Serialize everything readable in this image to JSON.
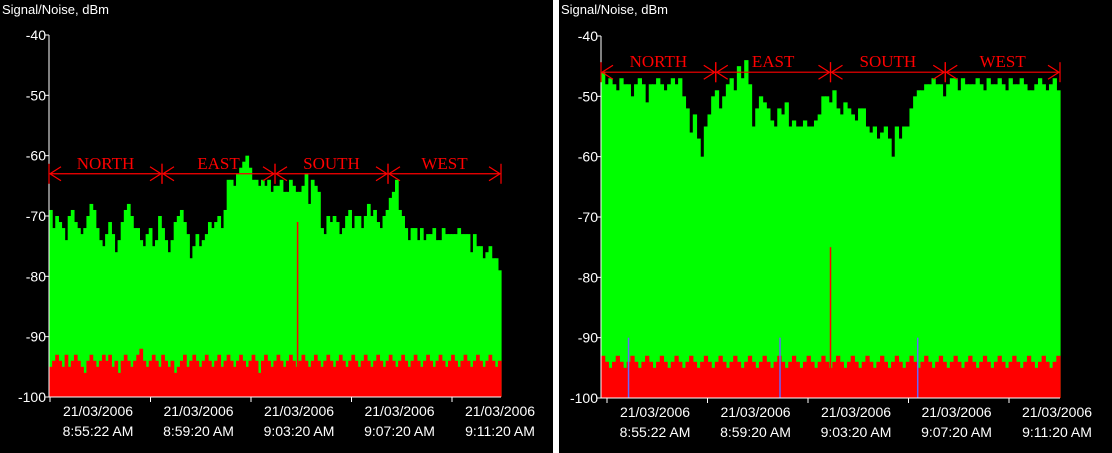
{
  "colors": {
    "background": "#000000",
    "signal": "#00ff00",
    "noise": "#ff0000",
    "text": "#ffffff",
    "axis": "#ffffff",
    "annotation": "#ff0000",
    "spike": "#ff0000",
    "marker": "#6666ff"
  },
  "chart_data": [
    {
      "type": "area",
      "ylabel": "Signal/Noise, dBm",
      "ylim": [
        -100,
        -40
      ],
      "yticks": [
        "-40",
        "-50",
        "-60",
        "-70",
        "-80",
        "-90",
        "-100"
      ],
      "xticks": [
        {
          "date": "21/03/2006",
          "time": "8:55:22 AM"
        },
        {
          "date": "21/03/2006",
          "time": "8:59:20 AM"
        },
        {
          "date": "21/03/2006",
          "time": "9:03:20 AM"
        },
        {
          "date": "21/03/2006",
          "time": "9:07:20 AM"
        },
        {
          "date": "21/03/2006",
          "time": "9:11:20 AM"
        }
      ],
      "annotation_level": -63,
      "annotations": [
        {
          "label": "NORTH",
          "from": 0.0,
          "to": 0.25
        },
        {
          "label": "EAST",
          "from": 0.25,
          "to": 0.5
        },
        {
          "label": "SOUTH",
          "from": 0.5,
          "to": 0.75
        },
        {
          "label": "WEST",
          "from": 0.75,
          "to": 1.0
        }
      ],
      "series": [
        {
          "name": "Signal",
          "values": [
            -69,
            -72,
            -70,
            -71,
            -72,
            -74,
            -70,
            -69,
            -71,
            -72,
            -73,
            -72,
            -70,
            -68,
            -69,
            -72,
            -74,
            -75,
            -73,
            -71,
            -73,
            -76,
            -74,
            -71,
            -69,
            -68,
            -70,
            -72,
            -72,
            -74,
            -75,
            -73,
            -72,
            -75,
            -74,
            -70,
            -72,
            -74,
            -76,
            -74,
            -71,
            -70,
            -69,
            -71,
            -73,
            -77,
            -75,
            -73,
            -75,
            -74,
            -73,
            -71,
            -72,
            -71,
            -70,
            -72,
            -69,
            -64,
            -64,
            -65,
            -63,
            -62,
            -61,
            -60,
            -62,
            -64,
            -64,
            -65,
            -64,
            -65,
            -64,
            -66,
            -65,
            -65,
            -64,
            -66,
            -66,
            -64,
            -65,
            -66,
            -66,
            -65,
            -63,
            -68,
            -64,
            -65,
            -66,
            -72,
            -73,
            -70,
            -71,
            -70,
            -71,
            -73,
            -72,
            -70,
            -69,
            -72,
            -70,
            -70,
            -72,
            -70,
            -68,
            -70,
            -69,
            -71,
            -72,
            -70,
            -69,
            -67,
            -66,
            -64,
            -69,
            -70,
            -72,
            -74,
            -72,
            -72,
            -74,
            -72,
            -74,
            -73,
            -73,
            -72,
            -74,
            -74,
            -72,
            -73,
            -73,
            -73,
            -73,
            -72,
            -73,
            -73,
            -73,
            -76,
            -73,
            -75,
            -75,
            -77,
            -76,
            -75,
            -77,
            -77,
            -79
          ]
        },
        {
          "name": "Noise",
          "values": [
            -95,
            -94,
            -93,
            -94,
            -95,
            -93,
            -95,
            -94,
            -93,
            -94,
            -95,
            -96,
            -94,
            -93,
            -94,
            -95,
            -94,
            -93,
            -94,
            -93,
            -95,
            -94,
            -96,
            -94,
            -93,
            -94,
            -95,
            -94,
            -93,
            -92,
            -94,
            -95,
            -94,
            -93,
            -94,
            -95,
            -93,
            -94,
            -95,
            -94,
            -96,
            -95,
            -94,
            -93,
            -95,
            -94,
            -93,
            -94,
            -95,
            -94,
            -93,
            -94,
            -95,
            -94,
            -93,
            -95,
            -94,
            -93,
            -94,
            -95,
            -94,
            -93,
            -94,
            -95,
            -94,
            -93,
            -94,
            -96,
            -94,
            -93,
            -94,
            -95,
            -94,
            -93,
            -94,
            -95,
            -94,
            -93,
            -94,
            -95,
            -94,
            -93,
            -94,
            -95,
            -94,
            -93,
            -94,
            -95,
            -94,
            -93,
            -94,
            -95,
            -94,
            -93,
            -94,
            -95,
            -94,
            -93,
            -94,
            -95,
            -94,
            -93,
            -94,
            -95,
            -94,
            -93,
            -94,
            -95,
            -94,
            -93,
            -94,
            -95,
            -94,
            -93,
            -94,
            -95,
            -94,
            -93,
            -94,
            -95,
            -94,
            -93,
            -94,
            -95,
            -94,
            -93,
            -94,
            -95,
            -94,
            -93,
            -94,
            -95,
            -94,
            -93,
            -94,
            -95,
            -94,
            -93,
            -94,
            -95,
            -94,
            -93,
            -94,
            -95,
            -94
          ]
        }
      ],
      "spikes": [
        {
          "x": 0.55,
          "value": -71
        }
      ],
      "markers": []
    },
    {
      "type": "area",
      "ylabel": "Signal/Noise, dBm",
      "ylim": [
        -100,
        -40
      ],
      "yticks": [
        "-40",
        "-50",
        "-60",
        "-70",
        "-80",
        "-90",
        "-100"
      ],
      "xticks": [
        {
          "date": "21/03/2006",
          "time": "8:55:22 AM"
        },
        {
          "date": "21/03/2006",
          "time": "8:59:20 AM"
        },
        {
          "date": "21/03/2006",
          "time": "9:03:20 AM"
        },
        {
          "date": "21/03/2006",
          "time": "9:07:20 AM"
        },
        {
          "date": "21/03/2006",
          "time": "9:11:20 AM"
        }
      ],
      "annotation_level": -46,
      "annotations": [
        {
          "label": "NORTH",
          "from": 0.0,
          "to": 0.25
        },
        {
          "label": "EAST",
          "from": 0.25,
          "to": 0.5
        },
        {
          "label": "SOUTH",
          "from": 0.5,
          "to": 0.75
        },
        {
          "label": "WEST",
          "from": 0.75,
          "to": 1.0
        }
      ],
      "series": [
        {
          "name": "Signal",
          "values": [
            -46,
            -48,
            -47,
            -48,
            -49,
            -47,
            -48,
            -48,
            -50,
            -48,
            -47,
            -48,
            -51,
            -48,
            -48,
            -47,
            -48,
            -49,
            -48,
            -47,
            -48,
            -47,
            -50,
            -52,
            -56,
            -53,
            -57,
            -60,
            -55,
            -53,
            -50,
            -49,
            -52,
            -50,
            -48,
            -47,
            -49,
            -45,
            -47,
            -44,
            -48,
            -55,
            -52,
            -50,
            -51,
            -52,
            -54,
            -55,
            -52,
            -53,
            -51,
            -55,
            -54,
            -55,
            -55,
            -54,
            -55,
            -55,
            -54,
            -53,
            -50,
            -50,
            -51,
            -49,
            -52,
            -53,
            -51,
            -52,
            -53,
            -54,
            -52,
            -52,
            -55,
            -56,
            -55,
            -57,
            -56,
            -55,
            -57,
            -60,
            -55,
            -57,
            -55,
            -55,
            -52,
            -50,
            -49,
            -49,
            -48,
            -48,
            -47,
            -48,
            -48,
            -50,
            -48,
            -47,
            -47,
            -49,
            -47,
            -48,
            -48,
            -48,
            -47,
            -48,
            -49,
            -47,
            -48,
            -48,
            -47,
            -48,
            -49,
            -47,
            -48,
            -48,
            -47,
            -48,
            -49,
            -49,
            -48,
            -47,
            -48,
            -49,
            -48,
            -47,
            -49
          ]
        },
        {
          "name": "Noise",
          "values": [
            -93,
            -94,
            -95,
            -94,
            -93,
            -94,
            -95,
            -94,
            -93,
            -94,
            -95,
            -94,
            -93,
            -94,
            -95,
            -94,
            -93,
            -94,
            -95,
            -94,
            -93,
            -94,
            -95,
            -94,
            -93,
            -94,
            -95,
            -94,
            -93,
            -94,
            -95,
            -94,
            -93,
            -94,
            -95,
            -94,
            -93,
            -94,
            -95,
            -94,
            -93,
            -94,
            -95,
            -94,
            -93,
            -94,
            -95,
            -94,
            -93,
            -94,
            -95,
            -94,
            -93,
            -94,
            -95,
            -94,
            -93,
            -94,
            -95,
            -94,
            -93,
            -94,
            -95,
            -94,
            -93,
            -94,
            -95,
            -94,
            -93,
            -94,
            -95,
            -94,
            -93,
            -94,
            -95,
            -94,
            -93,
            -94,
            -95,
            -94,
            -93,
            -94,
            -95,
            -94,
            -93,
            -94,
            -95,
            -94,
            -93,
            -94,
            -95,
            -94,
            -93,
            -94,
            -95,
            -94,
            -93,
            -94,
            -95,
            -94,
            -93,
            -94,
            -95,
            -94,
            -93,
            -94,
            -95,
            -94,
            -93,
            -94,
            -95,
            -94,
            -93,
            -94,
            -95,
            -94,
            -93,
            -94,
            -95,
            -94,
            -93,
            -94,
            -95,
            -94,
            -93
          ]
        }
      ],
      "spikes": [
        {
          "x": 0.5,
          "value": -75
        }
      ],
      "markers": [
        {
          "x": 0.06,
          "value": -90
        },
        {
          "x": 0.39,
          "value": -90
        },
        {
          "x": 0.69,
          "value": -90
        }
      ]
    }
  ]
}
